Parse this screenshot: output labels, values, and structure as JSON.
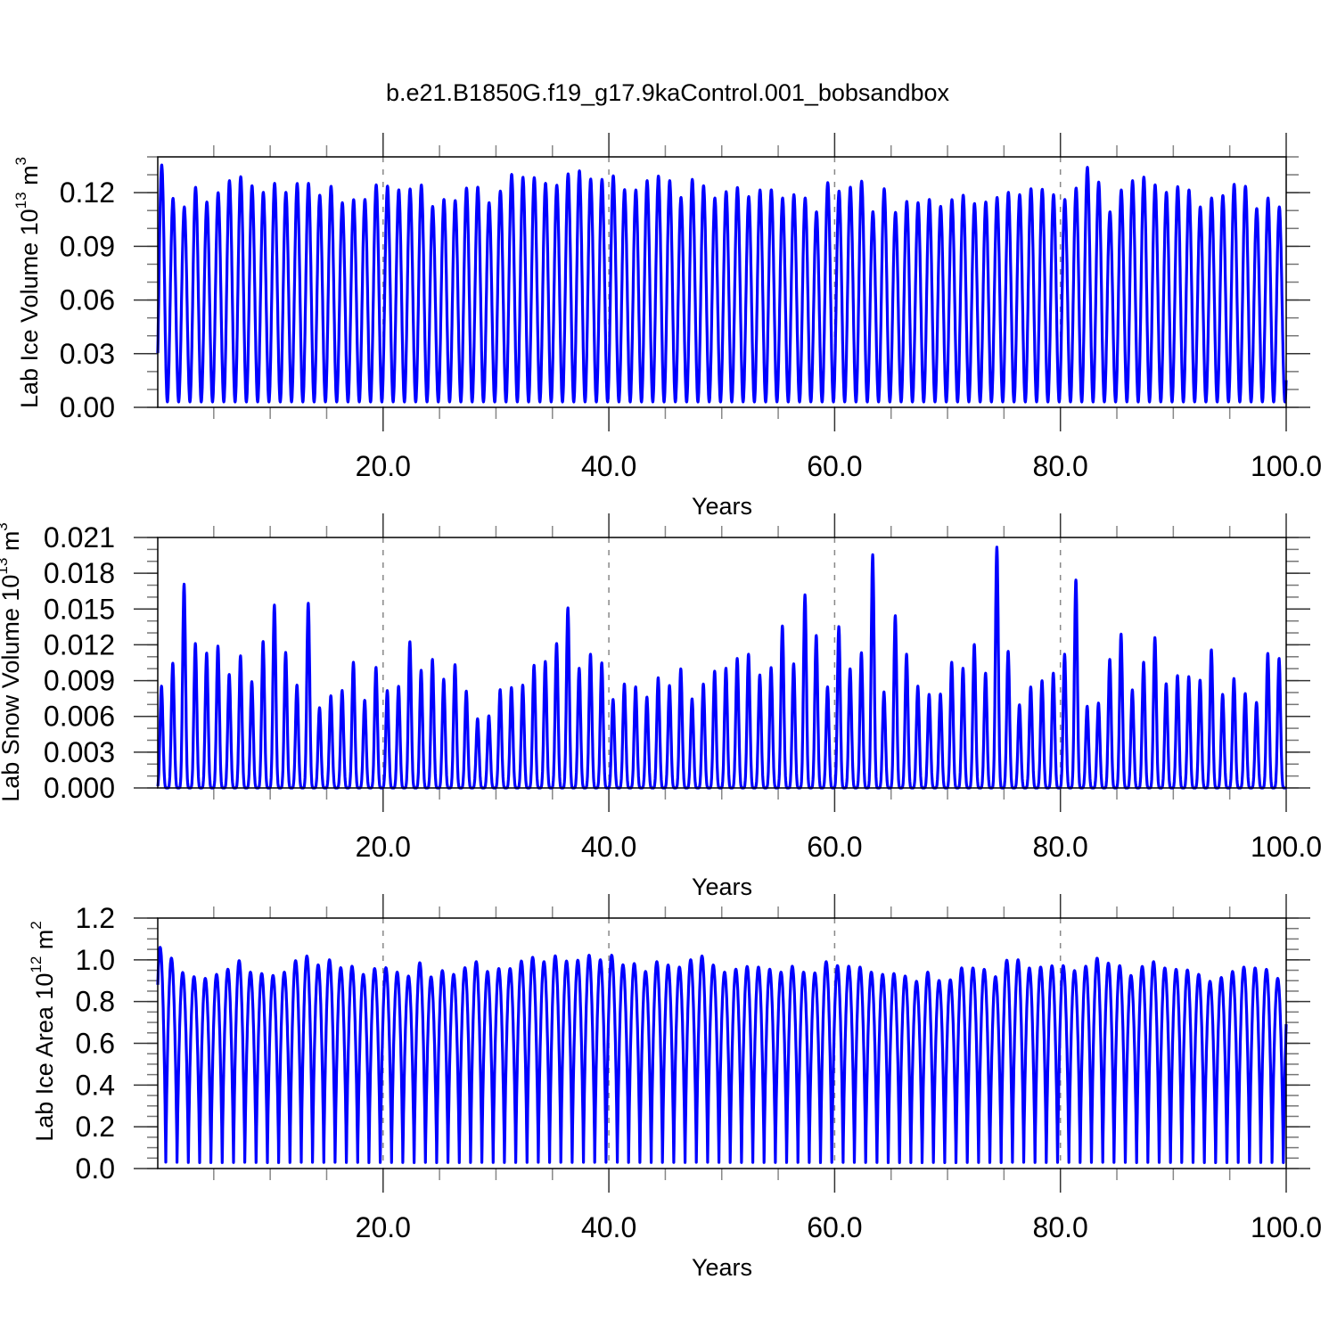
{
  "title": "b.e21.B1850G.f19_g17.9kaControl.001_bobsandbox",
  "chart_data": {
    "type": "line",
    "title": "b.e21.B1850G.f19_g17.9kaControl.001_bobsandbox",
    "grid": "dashed vertical lines at major x ticks",
    "panels": [
      {
        "ylabel": {
          "text": "Lab Ice Volume 10",
          "exp": "13",
          "unit": " m",
          "unit_exp": "3"
        },
        "xlabel": "Years",
        "xlim": [
          0.04,
          100
        ],
        "ylim": [
          0,
          0.14
        ],
        "xticks": [
          20,
          40,
          60,
          80,
          100
        ],
        "xtick_labels": [
          "20.0",
          "40.0",
          "60.0",
          "80.0",
          "100.0"
        ],
        "x_minor_step": 5,
        "yticks": [
          0,
          0.03,
          0.06,
          0.09,
          0.12
        ],
        "ytick_labels": [
          "0.00",
          "0.03",
          "0.06",
          "0.09",
          "0.12"
        ],
        "y_minor_step": 0.01,
        "series": {
          "name": "Lab Ice Volume",
          "color": "#0000ff",
          "annual_min": 0.003,
          "annual_peaks": [
            0.1355,
            0.1168,
            0.112,
            0.123,
            0.1148,
            0.12,
            0.1267,
            0.1289,
            0.1239,
            0.1202,
            0.1252,
            0.1202,
            0.1251,
            0.1252,
            0.1186,
            0.1236,
            0.1144,
            0.1161,
            0.1162,
            0.1244,
            0.1237,
            0.1216,
            0.1221,
            0.1243,
            0.1123,
            0.1162,
            0.1156,
            0.1226,
            0.1231,
            0.1144,
            0.1209,
            0.1302,
            0.1286,
            0.1284,
            0.1252,
            0.1242,
            0.1305,
            0.1322,
            0.1276,
            0.1274,
            0.1294,
            0.1217,
            0.1215,
            0.1267,
            0.1293,
            0.1267,
            0.1173,
            0.1274,
            0.1239,
            0.117,
            0.1206,
            0.1229,
            0.1178,
            0.1215,
            0.1216,
            0.117,
            0.1189,
            0.117,
            0.1093,
            0.1256,
            0.1209,
            0.1231,
            0.1264,
            0.1094,
            0.1222,
            0.109,
            0.1151,
            0.1144,
            0.1162,
            0.1123,
            0.1161,
            0.1186,
            0.1139,
            0.1148,
            0.1173,
            0.1202,
            0.1189,
            0.1222,
            0.1219,
            0.1189,
            0.1162,
            0.1226,
            0.1342,
            0.1259,
            0.1093,
            0.1215,
            0.1267,
            0.1287,
            0.1244,
            0.1202,
            0.1234,
            0.1215,
            0.112,
            0.117,
            0.1184,
            0.1247,
            0.1236,
            0.1111,
            0.117,
            0.112
          ]
        }
      },
      {
        "ylabel": {
          "text": "Lab Snow Volume 10",
          "exp": "13",
          "unit": " m",
          "unit_exp": "3"
        },
        "xlabel": "Years",
        "xlim": [
          0.04,
          100
        ],
        "ylim": [
          0,
          0.021
        ],
        "xticks": [
          20,
          40,
          60,
          80,
          100
        ],
        "xtick_labels": [
          "20.0",
          "40.0",
          "60.0",
          "80.0",
          "100.0"
        ],
        "x_minor_step": 5,
        "yticks": [
          0,
          0.003,
          0.006,
          0.009,
          0.012,
          0.015,
          0.018,
          0.021
        ],
        "ytick_labels": [
          "0.000",
          "0.003",
          "0.006",
          "0.009",
          "0.012",
          "0.015",
          "0.018",
          "0.021"
        ],
        "y_minor_step": 0.001,
        "series": {
          "name": "Lab Snow Volume",
          "color": "#0000ff",
          "annual_min": 0.0,
          "annual_peaks": [
            0.00854,
            0.01046,
            0.01709,
            0.01211,
            0.01131,
            0.0119,
            0.00952,
            0.01108,
            0.00892,
            0.01228,
            0.01534,
            0.01136,
            0.00862,
            0.01549,
            0.00673,
            0.00772,
            0.00817,
            0.01054,
            0.00735,
            0.01011,
            0.00817,
            0.00852,
            0.01226,
            0.00987,
            0.01078,
            0.00912,
            0.01034,
            0.00812,
            0.0058,
            0.00605,
            0.00824,
            0.00842,
            0.00862,
            0.01029,
            0.01061,
            0.01211,
            0.0151,
            0.01004,
            0.01121,
            0.01049,
            0.00742,
            0.00872,
            0.00847,
            0.00762,
            0.00924,
            0.00859,
            0.00999,
            0.00747,
            0.00872,
            0.00979,
            0.01004,
            0.01086,
            0.01121,
            0.00947,
            0.01009,
            0.01358,
            0.01041,
            0.01619,
            0.01278,
            0.00847,
            0.01353,
            0.00999,
            0.01134,
            0.01956,
            0.00805,
            0.01445,
            0.01121,
            0.00854,
            0.00785,
            0.00787,
            0.01054,
            0.01004,
            0.01203,
            0.00962,
            0.0202,
            0.01146,
            0.00697,
            0.00847,
            0.00899,
            0.00962,
            0.01121,
            0.01744,
            0.00685,
            0.00712,
            0.01078,
            0.0129,
            0.00822,
            0.01054,
            0.01261,
            0.00874,
            0.00942,
            0.00934,
            0.00904,
            0.01158,
            0.00785,
            0.00917,
            0.00792,
            0.00717,
            0.01128,
            0.01086
          ]
        }
      },
      {
        "ylabel": {
          "text": "Lab Ice Area 10",
          "exp": "12",
          "unit": " m",
          "unit_exp": "2"
        },
        "xlabel": "Years",
        "xlim": [
          0.04,
          100
        ],
        "ylim": [
          0,
          1.2
        ],
        "xticks": [
          20,
          40,
          60,
          80,
          100
        ],
        "xtick_labels": [
          "20.0",
          "40.0",
          "60.0",
          "80.0",
          "100.0"
        ],
        "x_minor_step": 5,
        "yticks": [
          0,
          0.2,
          0.4,
          0.6,
          0.8,
          1.0,
          1.2
        ],
        "ytick_labels": [
          "0.0",
          "0.2",
          "0.4",
          "0.6",
          "0.8",
          "1.0",
          "1.2"
        ],
        "y_minor_step": 0.05,
        "series": {
          "name": "Lab Ice Area",
          "color": "#0000ff",
          "annual_min": 0.015,
          "annual_peaks": [
            1.06,
            1.008,
            0.939,
            0.919,
            0.911,
            0.93,
            0.955,
            0.996,
            0.941,
            0.934,
            0.925,
            0.941,
            0.996,
            1.018,
            0.976,
            1.0,
            0.962,
            0.969,
            0.93,
            0.958,
            0.962,
            0.941,
            0.922,
            0.986,
            0.918,
            0.948,
            0.93,
            0.962,
            0.991,
            0.944,
            0.958,
            0.958,
            0.994,
            1.012,
            0.991,
            1.019,
            0.994,
            0.998,
            1.022,
            1.0,
            1.022,
            0.976,
            0.982,
            0.944,
            0.991,
            0.975,
            0.965,
            1.0,
            1.018,
            0.975,
            0.941,
            0.955,
            0.968,
            0.965,
            0.955,
            0.941,
            0.969,
            0.941,
            0.937,
            0.991,
            0.972,
            0.969,
            0.965,
            0.941,
            0.93,
            0.934,
            0.922,
            0.897,
            0.941,
            0.901,
            0.904,
            0.961,
            0.961,
            0.954,
            0.919,
            0.998,
            1.0,
            0.961,
            0.965,
            0.971,
            0.972,
            0.948,
            0.969,
            1.008,
            0.984,
            0.972,
            0.925,
            0.968,
            0.991,
            0.961,
            0.954,
            0.951,
            0.93,
            0.897,
            0.915,
            0.944,
            0.965,
            0.961,
            0.954,
            0.911
          ]
        }
      }
    ]
  }
}
